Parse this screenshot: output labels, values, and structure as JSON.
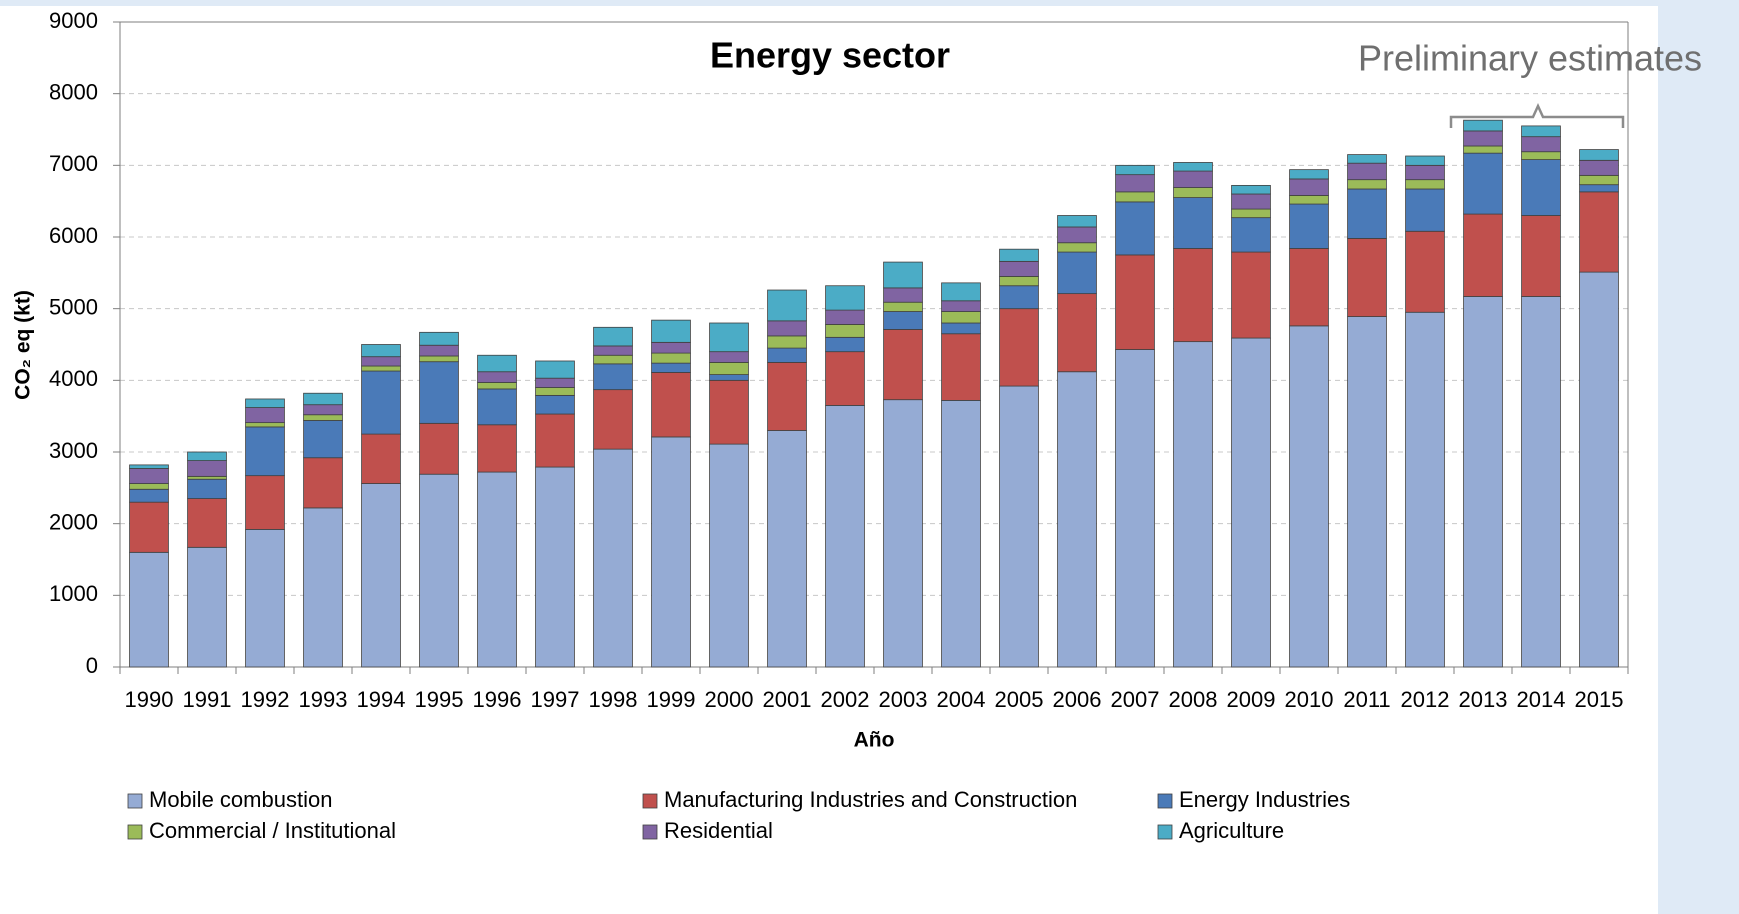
{
  "chart_data": {
    "type": "stacked_bar",
    "title": "Energy sector",
    "annotation": "Preliminary estimates",
    "x_label": "Año",
    "y_label": "CO₂ eq (kt)",
    "categories": [
      "1990",
      "1991",
      "1992",
      "1993",
      "1994",
      "1995",
      "1996",
      "1997",
      "1998",
      "1999",
      "2000",
      "2001",
      "2002",
      "2003",
      "2004",
      "2005",
      "2006",
      "2007",
      "2008",
      "2009",
      "2010",
      "2011",
      "2012",
      "2013",
      "2014",
      "2015"
    ],
    "series": [
      {
        "name": "Mobile combustion",
        "color": "#95abd4",
        "values": [
          1600,
          1670,
          1920,
          2220,
          2560,
          2690,
          2720,
          2790,
          3040,
          3210,
          3110,
          3300,
          3650,
          3730,
          3720,
          3920,
          4120,
          4430,
          4540,
          4590,
          4760,
          4890,
          4950,
          5170,
          5170,
          5510
        ]
      },
      {
        "name": "Manufacturing Industries and Construction",
        "color": "#c0504d",
        "values": [
          700,
          680,
          750,
          700,
          690,
          710,
          660,
          740,
          830,
          900,
          890,
          950,
          750,
          980,
          930,
          1080,
          1090,
          1320,
          1300,
          1200,
          1080,
          1090,
          1130,
          1150,
          1130,
          1120
        ]
      },
      {
        "name": "Energy Industries",
        "color": "#4a7ab8",
        "values": [
          180,
          270,
          680,
          520,
          880,
          860,
          500,
          260,
          360,
          130,
          80,
          200,
          200,
          250,
          150,
          320,
          580,
          740,
          710,
          480,
          620,
          690,
          590,
          850,
          780,
          100
        ]
      },
      {
        "name": "Commercial / Institutional",
        "color": "#9bbb59",
        "values": [
          80,
          40,
          60,
          80,
          70,
          80,
          90,
          110,
          120,
          140,
          170,
          170,
          180,
          130,
          160,
          130,
          130,
          140,
          140,
          120,
          120,
          130,
          130,
          100,
          110,
          130
        ]
      },
      {
        "name": "Residential",
        "color": "#8064a2",
        "values": [
          210,
          220,
          210,
          140,
          130,
          150,
          150,
          130,
          130,
          150,
          150,
          210,
          200,
          200,
          150,
          210,
          220,
          240,
          230,
          210,
          230,
          230,
          200,
          210,
          210,
          210
        ]
      },
      {
        "name": "Agriculture",
        "color": "#4bacc6",
        "values": [
          50,
          120,
          120,
          160,
          170,
          180,
          230,
          240,
          260,
          310,
          400,
          430,
          340,
          360,
          250,
          170,
          160,
          130,
          120,
          120,
          130,
          120,
          130,
          150,
          150,
          150
        ]
      }
    ],
    "ylim": [
      0,
      9000
    ],
    "yticks": [
      0,
      1000,
      2000,
      3000,
      4000,
      5000,
      6000,
      7000,
      8000,
      9000
    ],
    "grid": true,
    "legend": "bottom"
  }
}
